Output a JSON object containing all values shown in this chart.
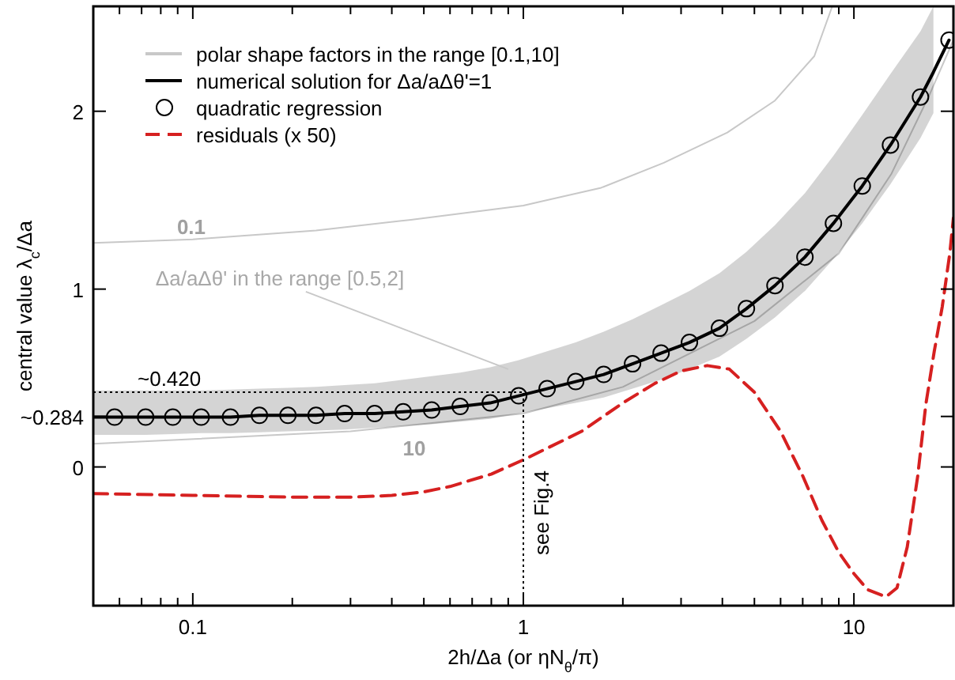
{
  "chart_data": {
    "type": "line",
    "xlabel": "2h/Δa  (or ηN$_{θ}$/π)",
    "ylabel": "central value λ$_{c}$/Δa",
    "log": "x",
    "xlim": [
      0.05,
      20
    ],
    "ylim": [
      -0.78,
      2.59
    ],
    "xticks": [
      {
        "value": 0.06,
        "label": null
      },
      {
        "value": 0.07,
        "label": null
      },
      {
        "value": 0.08,
        "label": null
      },
      {
        "value": 0.09,
        "label": null
      },
      0.1,
      {
        "value": 0.2,
        "label": null
      },
      {
        "value": 0.3,
        "label": null
      },
      {
        "value": 0.4,
        "label": null
      },
      {
        "value": 0.5,
        "label": null
      },
      {
        "value": 0.6,
        "label": null
      },
      {
        "value": 0.7,
        "label": null
      },
      {
        "value": 0.8,
        "label": null
      },
      {
        "value": 0.9,
        "label": null
      },
      1,
      {
        "value": 2,
        "label": null
      },
      {
        "value": 3,
        "label": null
      },
      {
        "value": 4,
        "label": null
      },
      {
        "value": 5,
        "label": null
      },
      {
        "value": 6,
        "label": null
      },
      {
        "value": 7,
        "label": null
      },
      {
        "value": 8,
        "label": null
      },
      {
        "value": 9,
        "label": null
      },
      10
    ],
    "yticks": [
      0,
      {
        "value": 0.284,
        "label": "~0.284"
      },
      1,
      2
    ],
    "legend": "top left",
    "grid": false,
    "series": [
      {
        "name": "polar shape factors in the range [0.1,10]",
        "color": "#c8c8c8",
        "x": [
          0.05,
          0.1,
          0.236,
          0.457,
          1,
          1.72,
          2.66,
          4.14,
          5.77,
          7.59,
          8.6
        ],
        "values": [
          1.26,
          1.28,
          1.33,
          1.39,
          1.47,
          1.57,
          1.71,
          1.88,
          2.06,
          2.31,
          2.59
        ]
      },
      {
        "color": "#c8c8c8",
        "x": [
          0.05,
          0.3,
          1,
          2,
          5,
          9,
          13,
          17,
          20
        ],
        "values": [
          0.13,
          0.2,
          0.3,
          0.45,
          0.82,
          1.2,
          1.65,
          2.1,
          2.4
        ]
      },
      {
        "name": "numerical solution for Δa/aΔθ'=1",
        "color": "#000000",
        "x": [
          0.05,
          0.058,
          0.072,
          0.087,
          0.106,
          0.13,
          0.159,
          0.194,
          0.236,
          0.288,
          0.355,
          0.433,
          0.528,
          0.644,
          0.794,
          0.968,
          1.18,
          1.44,
          1.75,
          2.14,
          2.61,
          3.18,
          3.92,
          4.73,
          5.77,
          7.11,
          8.67,
          10.6,
          12.9,
          15.9,
          17.4,
          19.4
        ],
        "values": [
          0.28,
          0.28,
          0.28,
          0.28,
          0.28,
          0.28,
          0.29,
          0.29,
          0.29,
          0.3,
          0.3,
          0.31,
          0.32,
          0.34,
          0.36,
          0.4,
          0.44,
          0.48,
          0.52,
          0.58,
          0.64,
          0.7,
          0.78,
          0.89,
          1.02,
          1.18,
          1.37,
          1.58,
          1.81,
          2.08,
          2.22,
          2.4
        ],
        "upper": [
          0.43,
          0.43,
          0.43,
          0.43,
          0.43,
          0.435,
          0.44,
          0.445,
          0.45,
          0.46,
          0.47,
          0.49,
          0.51,
          0.53,
          0.56,
          0.6,
          0.65,
          0.7,
          0.76,
          0.83,
          0.91,
          0.99,
          1.09,
          1.21,
          1.36,
          1.54,
          1.75,
          1.98,
          2.21,
          2.45,
          2.59,
          null
        ],
        "lower": [
          0.18,
          0.18,
          0.18,
          0.185,
          0.19,
          0.19,
          0.195,
          0.2,
          0.205,
          0.21,
          0.22,
          0.23,
          0.24,
          0.255,
          0.27,
          0.3,
          0.33,
          0.36,
          0.39,
          0.44,
          0.49,
          0.55,
          0.62,
          0.72,
          0.84,
          0.99,
          1.17,
          1.37,
          1.59,
          1.85,
          1.99,
          null
        ]
      },
      {
        "type": "scatter",
        "name": "quadratic regression",
        "color": "#000000",
        "marker": "circle",
        "x": [
          0.058,
          0.072,
          0.087,
          0.106,
          0.13,
          0.159,
          0.194,
          0.236,
          0.288,
          0.355,
          0.433,
          0.528,
          0.644,
          0.794,
          0.968,
          1.18,
          1.44,
          1.75,
          2.14,
          2.61,
          3.18,
          3.92,
          4.73,
          5.77,
          7.11,
          8.67,
          10.6,
          12.9,
          15.9,
          19.4
        ],
        "values": [
          0.28,
          0.28,
          0.28,
          0.28,
          0.28,
          0.29,
          0.29,
          0.29,
          0.3,
          0.3,
          0.31,
          0.32,
          0.34,
          0.36,
          0.4,
          0.44,
          0.48,
          0.52,
          0.58,
          0.64,
          0.7,
          0.78,
          0.89,
          1.02,
          1.18,
          1.37,
          1.58,
          1.81,
          2.08,
          2.4
        ]
      },
      {
        "name": "residuals (x 50)",
        "color": "#d62020",
        "line_style": "dashed",
        "x": [
          0.05,
          0.1,
          0.2,
          0.3,
          0.4,
          0.5,
          0.6,
          0.8,
          1,
          1.5,
          2,
          2.5,
          3,
          3.6,
          4.2,
          5,
          6,
          7,
          8,
          9,
          10,
          11,
          12.5,
          13.5,
          14.5,
          15.6,
          16.5,
          17.5,
          18.5,
          19.5,
          20
        ],
        "values": [
          -0.15,
          -0.16,
          -0.17,
          -0.17,
          -0.16,
          -0.14,
          -0.11,
          -0.04,
          0.04,
          0.2,
          0.36,
          0.47,
          0.54,
          0.57,
          0.55,
          0.42,
          0.2,
          -0.05,
          -0.3,
          -0.48,
          -0.6,
          -0.69,
          -0.73,
          -0.68,
          -0.45,
          -0.05,
          0.35,
          0.65,
          0.9,
          1.2,
          1.4
        ]
      }
    ],
    "ref_lines": [
      {
        "axis": "y",
        "value": 0.42,
        "label": "~0.420",
        "line_style": "dotted"
      },
      {
        "axis": "x",
        "value": 1,
        "label": "see Fig.4",
        "line_style": "dotted"
      }
    ],
    "annotations": [
      "0.1",
      "10",
      {
        "text": "Δa/aΔθ' in the range [0.5,2]",
        "x": 0.9,
        "y": 0.55
      }
    ]
  }
}
